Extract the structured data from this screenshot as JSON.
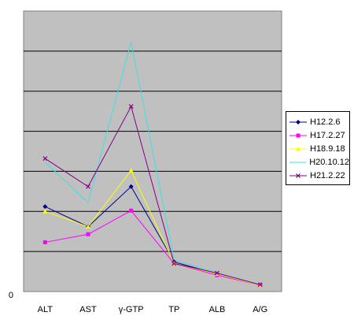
{
  "chart_data": {
    "type": "line",
    "title": "",
    "xlabel": "",
    "ylabel": "",
    "categories": [
      "ALT",
      "AST",
      "γ-GTP",
      "TP",
      "ALB",
      "A/G"
    ],
    "ylim": [
      0,
      7
    ],
    "y_ticks_shown": [
      "0"
    ],
    "grid": "horizontal",
    "legend_position": "right",
    "plot_background": "#c0c0c0",
    "series": [
      {
        "name": "H12.2.6",
        "color": "#000080",
        "marker": "diamond",
        "values": [
          2.12,
          1.62,
          2.62,
          0.74,
          0.44,
          0.17
        ]
      },
      {
        "name": "H17.2.27",
        "color": "#ff00ff",
        "marker": "square",
        "values": [
          1.23,
          1.43,
          2.02,
          0.7,
          0.41,
          0.16
        ]
      },
      {
        "name": "H18.9.18",
        "color": "#ffff00",
        "marker": "triangle",
        "values": [
          2.0,
          1.62,
          3.02,
          0.7,
          0.44,
          0.16
        ]
      },
      {
        "name": "H20.10.12",
        "color": "#40e0e0",
        "marker": "none",
        "values": [
          3.23,
          2.22,
          6.22,
          0.79,
          0.47,
          0.18
        ]
      },
      {
        "name": "H21.2.22",
        "color": "#800080",
        "marker": "x",
        "values": [
          3.32,
          2.62,
          4.62,
          0.7,
          0.46,
          0.17
        ]
      }
    ]
  }
}
